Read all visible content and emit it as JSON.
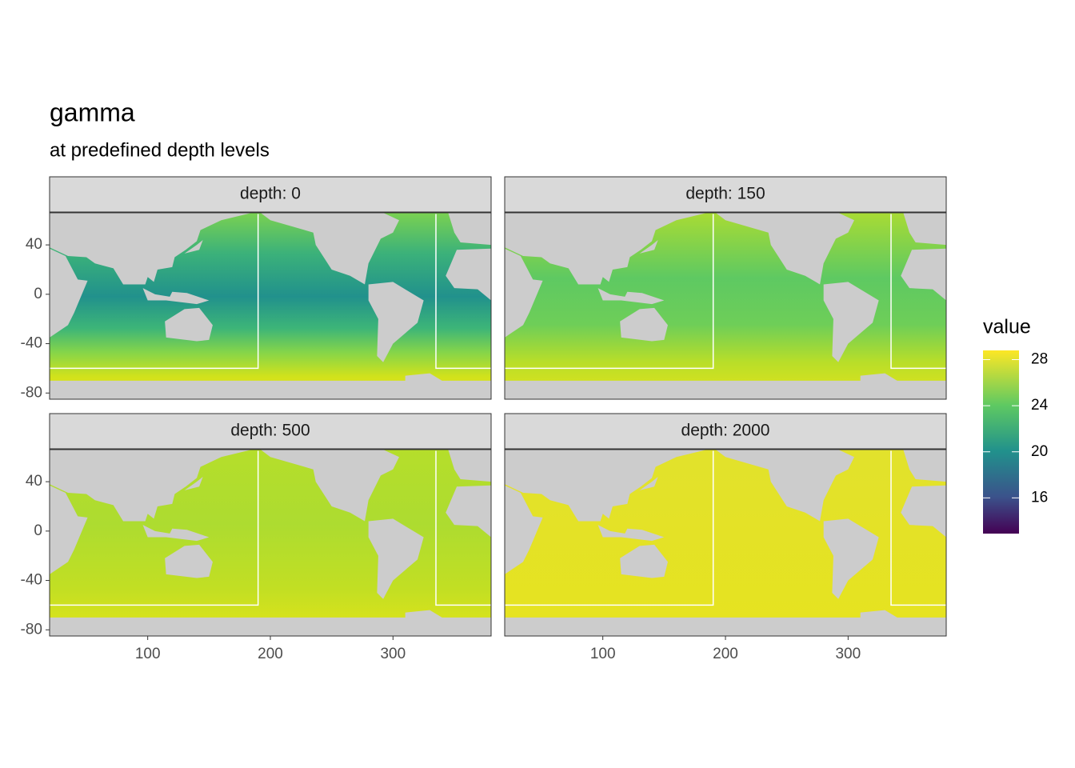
{
  "chart_data": {
    "type": "raster-map",
    "title": "gamma",
    "subtitle": "at predefined depth levels",
    "facets": [
      {
        "label": "depth: 0"
      },
      {
        "label": "depth: 150"
      },
      {
        "label": "depth: 500"
      },
      {
        "label": "depth: 2000"
      }
    ],
    "xlim": [
      20,
      380
    ],
    "ylim": [
      -85,
      66
    ],
    "xticks": [
      100,
      200,
      300
    ],
    "yticks": [
      40,
      0,
      -40,
      -80
    ],
    "outlines": [
      {
        "x": [
          20,
          190,
          190
        ],
        "y": [
          -60,
          -60,
          65
        ]
      },
      {
        "x": [
          380,
          335,
          335
        ],
        "y": [
          -60,
          -60,
          65
        ]
      }
    ],
    "legend": {
      "title": "value",
      "limits": [
        12.9,
        28.8
      ],
      "ticks": [
        16,
        20,
        24,
        28
      ],
      "position": "right"
    }
  }
}
